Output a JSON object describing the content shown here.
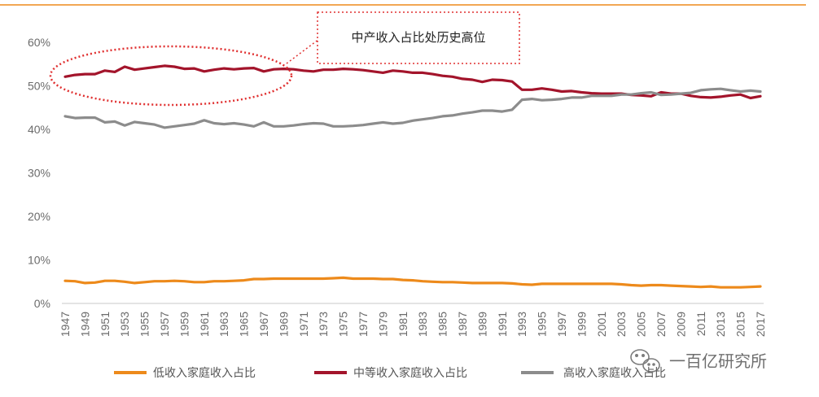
{
  "chart_data": {
    "type": "line",
    "title": "",
    "xlabel": "",
    "ylabel": "",
    "ylim": [
      0,
      60
    ],
    "y_ticks": [
      "0%",
      "10%",
      "20%",
      "30%",
      "40%",
      "50%",
      "60%"
    ],
    "x_tick_labels": [
      "1947",
      "1949",
      "1951",
      "1953",
      "1955",
      "1957",
      "1959",
      "1961",
      "1963",
      "1965",
      "1967",
      "1969",
      "1971",
      "1973",
      "1975",
      "1977",
      "1979",
      "1981",
      "1983",
      "1985",
      "1987",
      "1989",
      "1991",
      "1993",
      "1995",
      "1997",
      "1999",
      "2001",
      "2003",
      "2005",
      "2007",
      "2009",
      "2011",
      "2013",
      "2015",
      "2017"
    ],
    "x": [
      1947,
      1948,
      1949,
      1950,
      1951,
      1952,
      1953,
      1954,
      1955,
      1956,
      1957,
      1958,
      1959,
      1960,
      1961,
      1962,
      1963,
      1964,
      1965,
      1966,
      1967,
      1968,
      1969,
      1970,
      1971,
      1972,
      1973,
      1974,
      1975,
      1976,
      1977,
      1978,
      1979,
      1980,
      1981,
      1982,
      1983,
      1984,
      1985,
      1986,
      1987,
      1988,
      1989,
      1990,
      1991,
      1992,
      1993,
      1994,
      1995,
      1996,
      1997,
      1998,
      1999,
      2000,
      2001,
      2002,
      2003,
      2004,
      2005,
      2006,
      2007,
      2008,
      2009,
      2010,
      2011,
      2012,
      2013,
      2014,
      2015,
      2016,
      2017
    ],
    "series": [
      {
        "name": "低收入家庭收入占比",
        "color": "#ed8a1b",
        "values": [
          5.2,
          5.1,
          4.7,
          4.8,
          5.2,
          5.2,
          5.0,
          4.7,
          4.9,
          5.1,
          5.1,
          5.2,
          5.1,
          4.9,
          4.9,
          5.1,
          5.1,
          5.2,
          5.3,
          5.6,
          5.6,
          5.7,
          5.7,
          5.7,
          5.7,
          5.7,
          5.7,
          5.8,
          5.9,
          5.7,
          5.7,
          5.7,
          5.6,
          5.6,
          5.4,
          5.3,
          5.1,
          5.0,
          4.9,
          4.9,
          4.8,
          4.7,
          4.7,
          4.7,
          4.7,
          4.6,
          4.4,
          4.3,
          4.5,
          4.5,
          4.5,
          4.5,
          4.5,
          4.5,
          4.5,
          4.5,
          4.4,
          4.2,
          4.1,
          4.2,
          4.2,
          4.1,
          4.0,
          3.9,
          3.8,
          3.9,
          3.7,
          3.7,
          3.7,
          3.8,
          3.9
        ]
      },
      {
        "name": "中等收入家庭收入占比",
        "color": "#a3142b",
        "values": [
          52.1,
          52.5,
          52.7,
          52.7,
          53.5,
          53.2,
          54.4,
          53.7,
          54.0,
          54.3,
          54.6,
          54.4,
          53.9,
          54.0,
          53.3,
          53.7,
          54.0,
          53.8,
          54.0,
          54.1,
          53.3,
          53.8,
          53.9,
          53.8,
          53.5,
          53.3,
          53.7,
          53.7,
          53.9,
          53.8,
          53.6,
          53.3,
          53.0,
          53.5,
          53.3,
          53.0,
          53.0,
          52.7,
          52.3,
          52.1,
          51.6,
          51.4,
          50.9,
          51.4,
          51.3,
          51.0,
          49.1,
          49.1,
          49.4,
          49.1,
          48.7,
          48.8,
          48.5,
          48.3,
          48.2,
          48.2,
          48.2,
          47.9,
          47.8,
          47.6,
          48.5,
          48.2,
          48.2,
          47.7,
          47.4,
          47.3,
          47.5,
          47.8,
          48.0,
          47.2,
          47.6
        ]
      },
      {
        "name": "高收入家庭收入占比",
        "color": "#8c8c8c",
        "values": [
          43.0,
          42.6,
          42.7,
          42.7,
          41.6,
          41.8,
          40.9,
          41.7,
          41.4,
          41.1,
          40.4,
          40.7,
          41.0,
          41.3,
          42.1,
          41.4,
          41.2,
          41.4,
          41.1,
          40.7,
          41.6,
          40.7,
          40.7,
          40.9,
          41.2,
          41.4,
          41.3,
          40.7,
          40.7,
          40.8,
          41.0,
          41.3,
          41.6,
          41.3,
          41.5,
          42.0,
          42.3,
          42.6,
          43.0,
          43.2,
          43.6,
          43.9,
          44.3,
          44.3,
          44.1,
          44.5,
          46.8,
          47.0,
          46.7,
          46.8,
          47.0,
          47.3,
          47.3,
          47.7,
          47.7,
          47.7,
          48.0,
          48.0,
          48.3,
          48.5,
          47.9,
          48.0,
          48.2,
          48.4,
          49.0,
          49.2,
          49.3,
          49.0,
          48.7,
          48.9,
          48.7
        ]
      }
    ],
    "annotation": "中产收入占比处历史高位",
    "legend_position": "bottom"
  },
  "watermark": "一百亿研究所",
  "colors": {
    "top_rule": "#ed8a1b",
    "callout_border": "#e03030"
  }
}
